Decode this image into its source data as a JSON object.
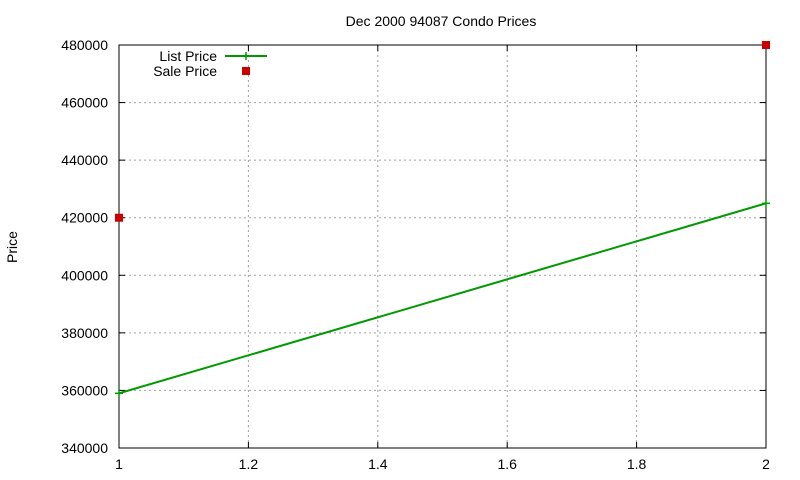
{
  "chart_data": {
    "type": "line",
    "title": "Dec 2000 94087 Condo Prices",
    "xlabel": "",
    "ylabel": "Price",
    "xlim": [
      1,
      2
    ],
    "ylim": [
      340000,
      480000
    ],
    "x_ticks": [
      "1",
      "1.2",
      "1.4",
      "1.6",
      "1.8",
      "2"
    ],
    "y_ticks": [
      "340000",
      "360000",
      "380000",
      "400000",
      "420000",
      "440000",
      "460000",
      "480000"
    ],
    "grid": true,
    "legend_position": "top-left",
    "series": [
      {
        "name": "List Price",
        "style": "linespoints",
        "color": "#009900",
        "points": [
          [
            1,
            359000
          ],
          [
            2,
            425000
          ]
        ]
      },
      {
        "name": "Sale Price",
        "style": "points",
        "color": "#cc0000",
        "points": [
          [
            1,
            420000
          ],
          [
            2,
            480000
          ]
        ]
      }
    ]
  }
}
